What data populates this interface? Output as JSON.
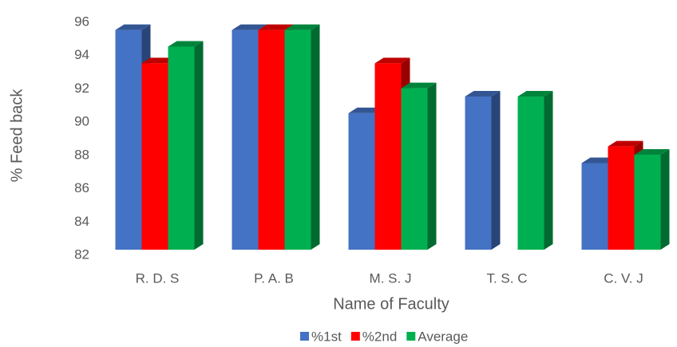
{
  "chart_data": {
    "type": "bar3d",
    "x_label": "Name of Faculty",
    "y_label": "% Feed back",
    "categories": [
      "R. D. S",
      "P. A. B",
      "M. S. J",
      "T. S. C",
      "C. V. J"
    ],
    "series": [
      {
        "name": "%1st",
        "color": "#4472c4",
        "values": [
          95.3,
          95.3,
          90.3,
          91.3,
          87.3
        ]
      },
      {
        "name": "%2nd",
        "color": "#ff0000",
        "values": [
          93.3,
          95.3,
          93.3,
          null,
          88.3
        ]
      },
      {
        "name": "Average",
        "color": "#00b050",
        "values": [
          94.3,
          95.3,
          91.8,
          91.3,
          87.8
        ]
      }
    ],
    "ylim": [
      82,
      96
    ],
    "yticks": [
      82,
      84,
      86,
      88,
      90,
      92,
      94,
      96
    ],
    "legend": "bottom"
  }
}
